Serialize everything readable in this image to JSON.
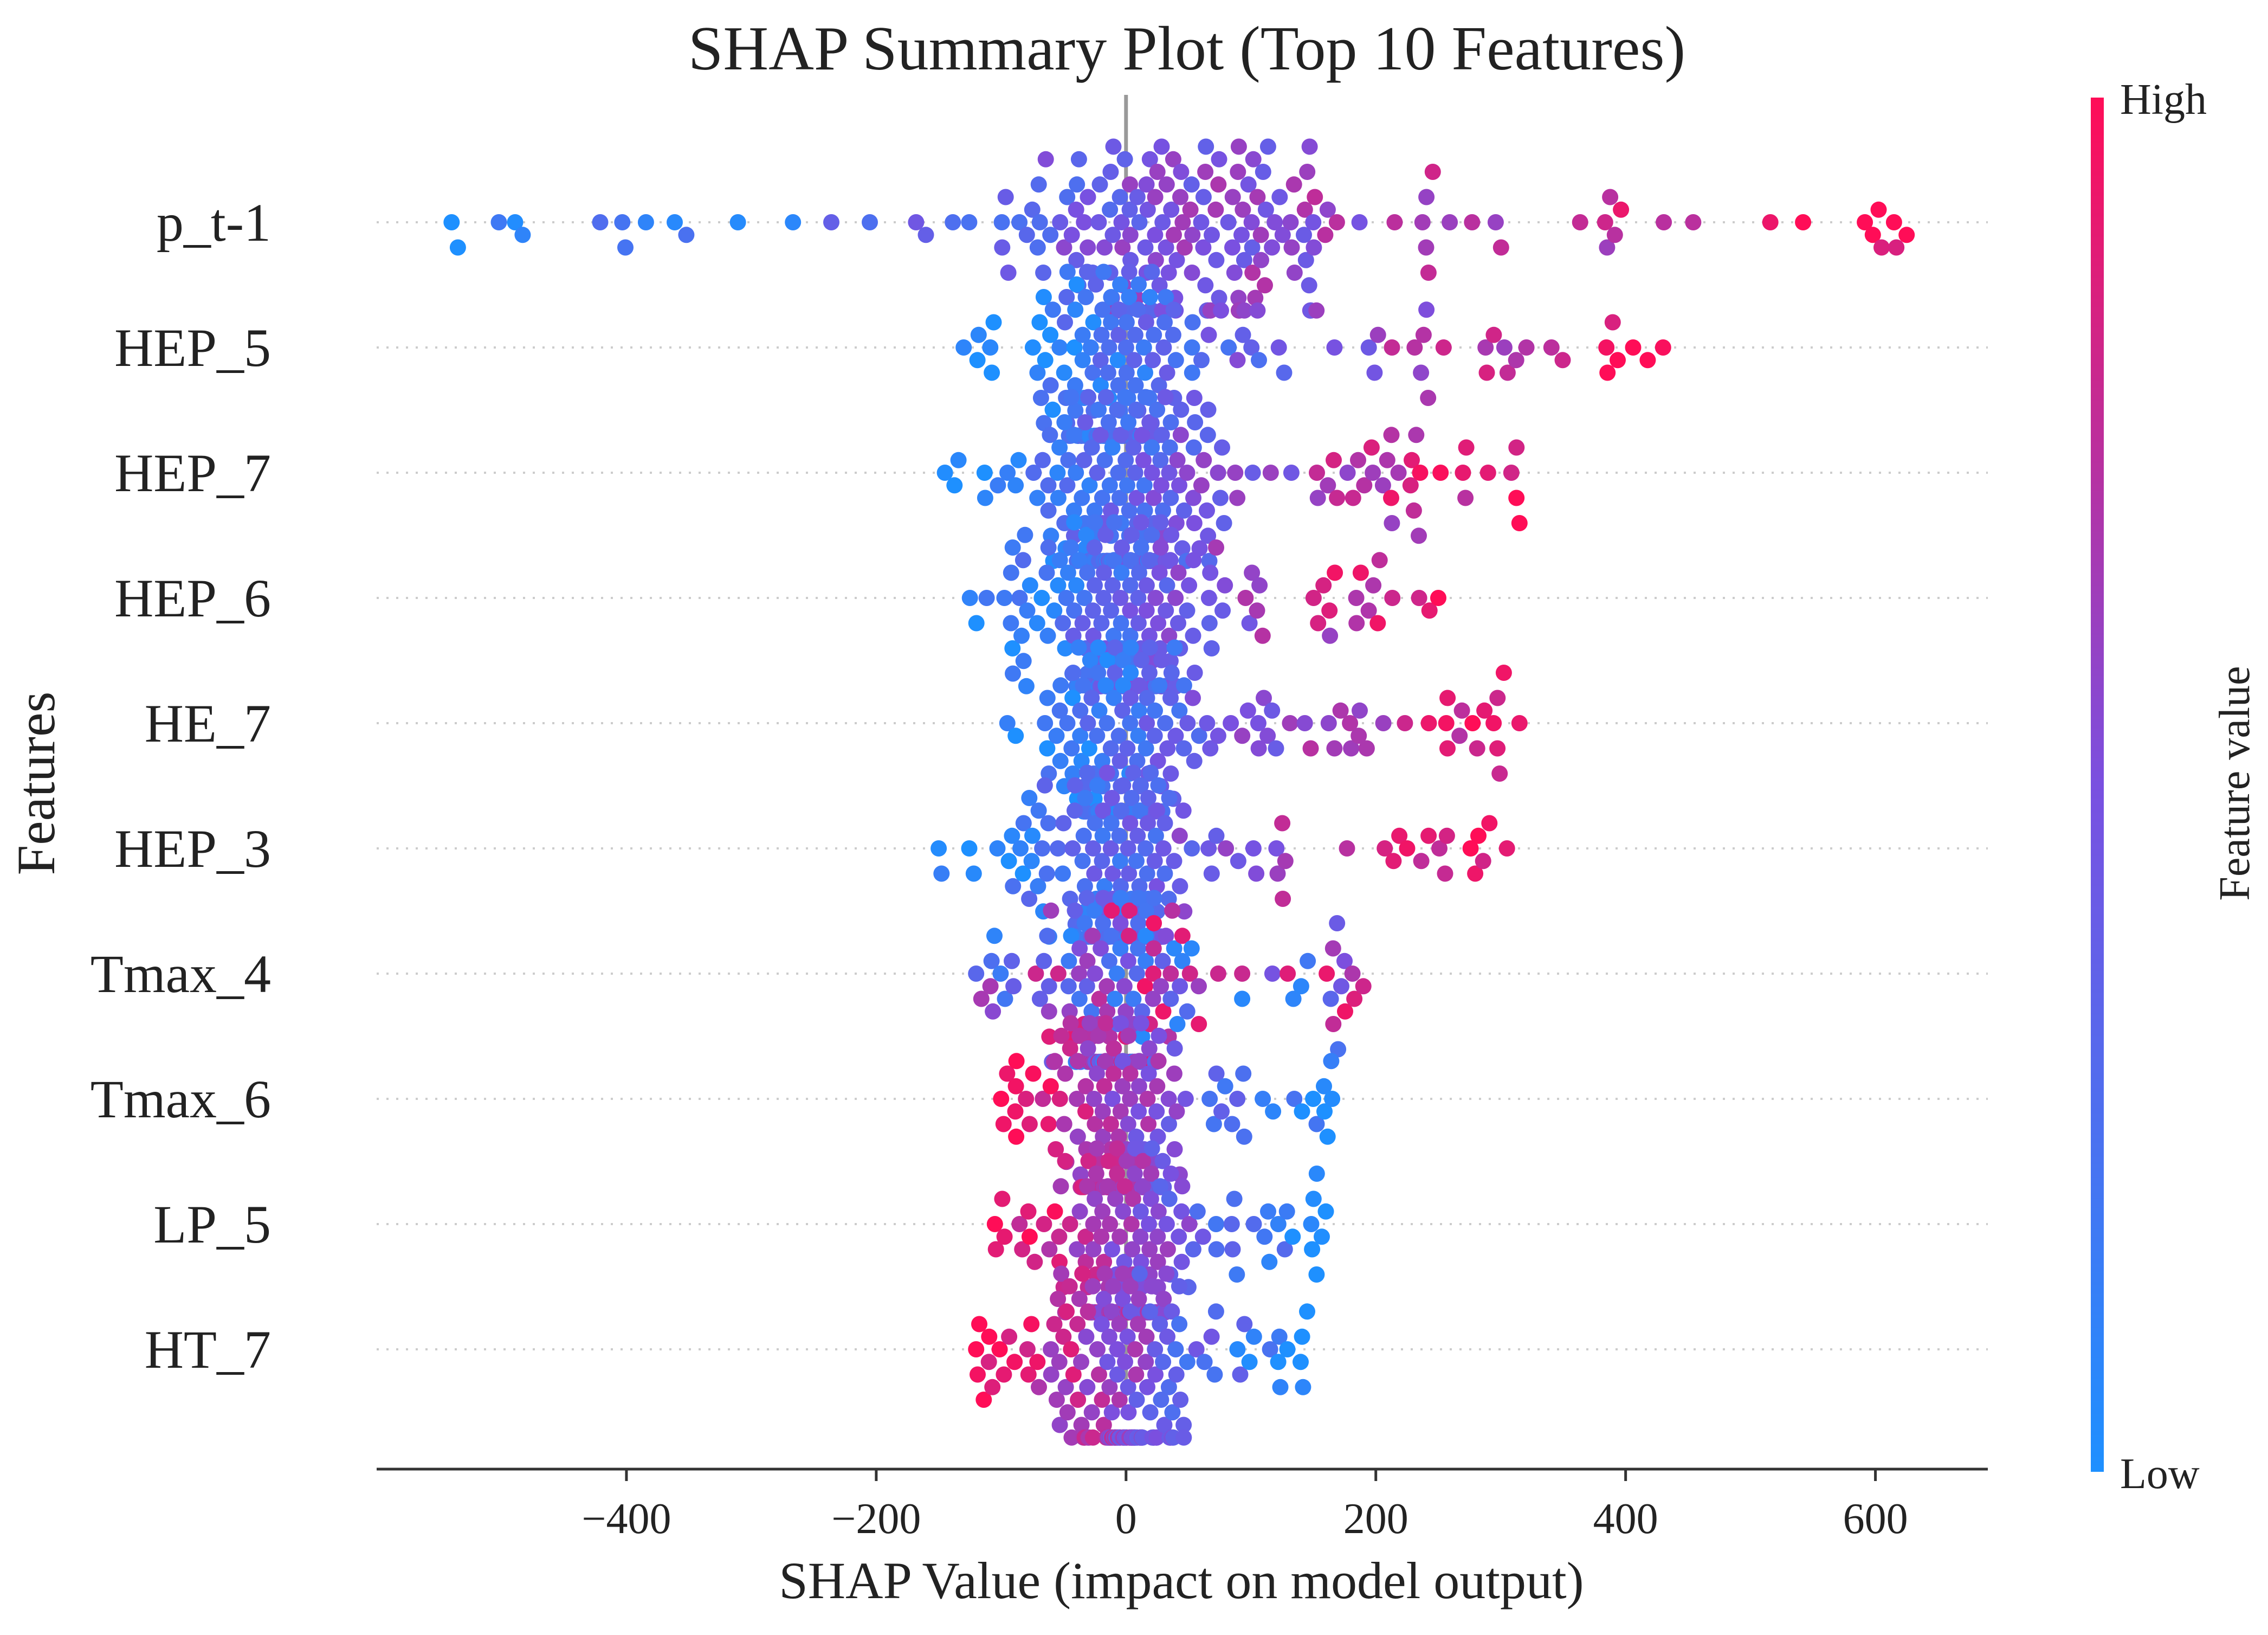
{
  "chart_data": {
    "type": "scatter",
    "subtype": "beeswarm",
    "title": "SHAP Summary Plot (Top 10 Features)",
    "xlabel": "SHAP Value (impact on model output)",
    "ylabel": "Features",
    "xlim": [
      -600,
      690
    ],
    "xticks": [
      -400,
      -200,
      0,
      200,
      400,
      600
    ],
    "xtick_labels": [
      "−400",
      "−200",
      "0",
      "200",
      "400",
      "600"
    ],
    "grid": false,
    "colorbar": {
      "label": "Feature value",
      "high_label": "High",
      "low_label": "Low",
      "low_color": "#1e90ff",
      "mid_color": "#7a50e0",
      "high_color": "#ff0d57"
    },
    "features": [
      {
        "name": "p_t-1",
        "range": [
          -540,
          625
        ],
        "center": [
          -80,
          170
        ],
        "high_side": "right",
        "count": 200
      },
      {
        "name": "HEP_5",
        "range": [
          -130,
          430
        ],
        "center": [
          -60,
          40
        ],
        "high_side": "right",
        "count": 200
      },
      {
        "name": "HEP_7",
        "range": [
          -145,
          315
        ],
        "center": [
          -60,
          60
        ],
        "high_side": "right",
        "count": 220
      },
      {
        "name": "HEP_6",
        "range": [
          -125,
          250
        ],
        "center": [
          -50,
          50
        ],
        "high_side": "right",
        "count": 220
      },
      {
        "name": "HE_7",
        "range": [
          -95,
          315
        ],
        "center": [
          -55,
          40
        ],
        "high_side": "right",
        "count": 210
      },
      {
        "name": "HEP_3",
        "range": [
          -150,
          305
        ],
        "center": [
          -40,
          40
        ],
        "high_side": "right",
        "count": 210
      },
      {
        "name": "Tmax_4",
        "range": [
          -120,
          190
        ],
        "center": [
          -50,
          40
        ],
        "high_side": "mixed",
        "count": 200
      },
      {
        "name": "Tmax_6",
        "range": [
          -100,
          165
        ],
        "center": [
          -40,
          30
        ],
        "high_side": "left",
        "count": 200
      },
      {
        "name": "LP_5",
        "range": [
          -105,
          160
        ],
        "center": [
          -40,
          40
        ],
        "high_side": "left",
        "count": 190
      },
      {
        "name": "HT_7",
        "range": [
          -120,
          145
        ],
        "center": [
          -40,
          40
        ],
        "high_side": "left",
        "count": 190
      }
    ]
  }
}
